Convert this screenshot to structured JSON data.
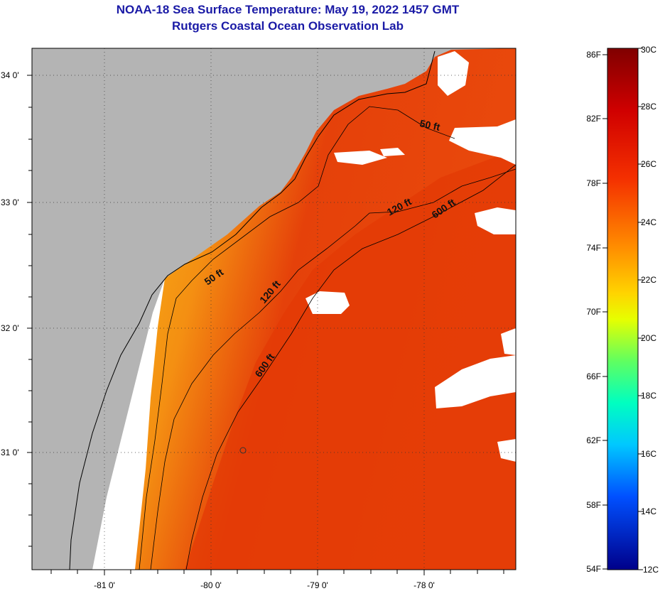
{
  "header": {
    "title": "NOAA-18 Sea Surface Temperature:  May 19, 2022 1457 GMT",
    "subtitle": "Rutgers Coastal Ocean Observation Lab"
  },
  "axes": {
    "lon_labels": [
      "-81 0'",
      "-80 0'",
      "-79 0'",
      "-78 0'"
    ],
    "lat_labels": [
      "34 0'",
      "33 0'",
      "32 0'",
      "31 0'"
    ]
  },
  "contours": {
    "labels": [
      "50 ft",
      "50 ft",
      "120 ft",
      "120 ft",
      "600 ft",
      "600 ft"
    ]
  },
  "colorbar": {
    "fahrenheit_labels": [
      "86F",
      "82F",
      "78F",
      "74F",
      "70F",
      "66F",
      "62F",
      "58F",
      "54F"
    ],
    "celsius_labels": [
      "30C",
      "28C",
      "26C",
      "24C",
      "22C",
      "20C",
      "18C",
      "16C",
      "14C",
      "12C"
    ]
  },
  "colors": {
    "land": "#b4b4b4",
    "cloud_mask": "#ffffff",
    "title": "#1a1aa6",
    "sst_warm": "#e53a00",
    "sst_mid": "#f06a0a",
    "sst_cool": "#f8b818"
  }
}
